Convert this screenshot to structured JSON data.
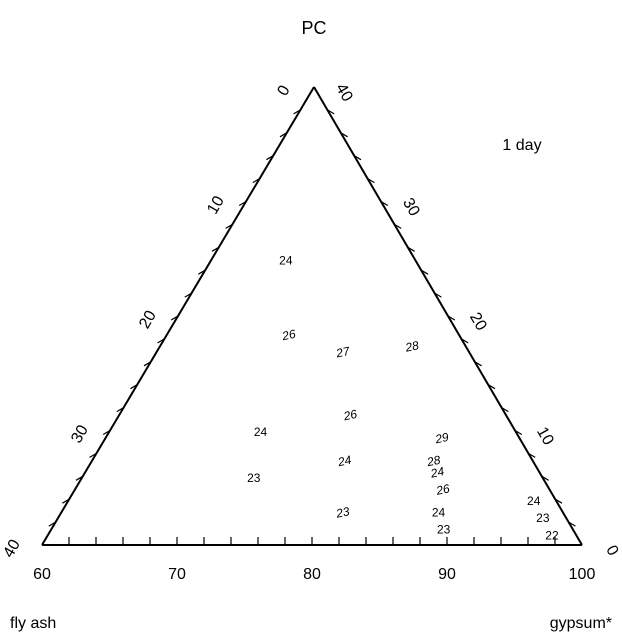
{
  "chart_data": {
    "type": "scatter",
    "subtype": "ternary",
    "title": "PC",
    "annotation": "1 day",
    "corner_labels": {
      "bottom_left": "fly ash",
      "bottom_right": "gypsum*"
    },
    "axes": {
      "bottom": {
        "ticks": [
          "60",
          "70",
          "80",
          "90",
          "100"
        ],
        "range": [
          60,
          100
        ]
      },
      "left": {
        "ticks": [
          "0",
          "10",
          "20",
          "30",
          "40"
        ],
        "range": [
          0,
          40
        ]
      },
      "right": {
        "ticks": [
          "40",
          "30",
          "20",
          "10",
          "0"
        ],
        "range": [
          0,
          40
        ]
      }
    },
    "points": [
      {
        "label": "24",
        "x": 75.0,
        "y": 24.5,
        "italic": false
      },
      {
        "label": "26",
        "x": 77.0,
        "y": 18.0,
        "italic": true
      },
      {
        "label": "27",
        "x": 84.0,
        "y": 16.5,
        "italic": true
      },
      {
        "label": "28",
        "x": 93.0,
        "y": 17.0,
        "italic": true
      },
      {
        "label": "26",
        "x": 84.0,
        "y": 11.0,
        "italic": true
      },
      {
        "label": "24",
        "x": 75.0,
        "y": 9.5,
        "italic": false
      },
      {
        "label": "29",
        "x": 92.5,
        "y": 9.0,
        "italic": true
      },
      {
        "label": "24",
        "x": 83.0,
        "y": 7.0,
        "italic": true
      },
      {
        "label": "28",
        "x": 91.0,
        "y": 7.0,
        "italic": true
      },
      {
        "label": "24",
        "x": 91.0,
        "y": 6.0,
        "italic": true
      },
      {
        "label": "26",
        "x": 91.0,
        "y": 4.5,
        "italic": true
      },
      {
        "label": "23",
        "x": 75.0,
        "y": 5.5,
        "italic": false
      },
      {
        "label": "23",
        "x": 82.5,
        "y": 2.5,
        "italic": true
      },
      {
        "label": "24",
        "x": 90.0,
        "y": 2.5,
        "italic": false
      },
      {
        "label": "23",
        "x": 90.0,
        "y": 1.0,
        "italic": false
      },
      {
        "label": "24",
        "x": 98.0,
        "y": 3.5,
        "italic": false
      },
      {
        "label": "23",
        "x": 98.0,
        "y": 2.0,
        "italic": false
      },
      {
        "label": "22",
        "x": 98.0,
        "y": 0.5,
        "italic": false
      }
    ]
  }
}
